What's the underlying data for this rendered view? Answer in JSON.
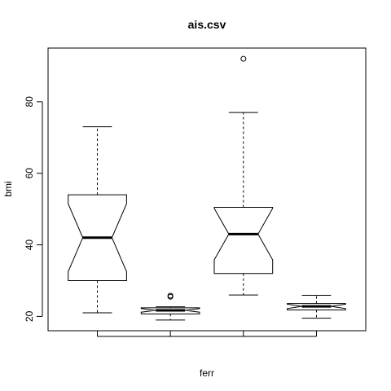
{
  "chart_data": {
    "type": "box",
    "title": "ais.csv",
    "xlabel": "ferr",
    "ylabel": "bmi",
    "ylim": [
      16.0,
      95.0
    ],
    "yticks": [
      20,
      40,
      60,
      80
    ],
    "notched": true,
    "grid": false,
    "boxes": [
      {
        "min": 21.0,
        "q1": 30.0,
        "median": 42.0,
        "q3": 54.0,
        "max": 73.0,
        "notch_low": 32.5,
        "notch_high": 51.5,
        "outliers": []
      },
      {
        "min": 19.0,
        "q1": 20.7,
        "median": 21.7,
        "q3": 22.4,
        "max": 22.7,
        "notch_low": 21.2,
        "notch_high": 22.2,
        "outliers": [
          25.5,
          25.8
        ]
      },
      {
        "min": 26.0,
        "q1": 32.0,
        "median": 43.0,
        "q3": 50.5,
        "max": 77.0,
        "notch_low": 35.8,
        "notch_high": 50.2,
        "outliers": [
          92.0
        ]
      },
      {
        "min": 19.5,
        "q1": 21.8,
        "median": 22.8,
        "q3": 23.6,
        "max": 25.9,
        "notch_low": 22.2,
        "notch_high": 23.4,
        "outliers": []
      }
    ]
  }
}
